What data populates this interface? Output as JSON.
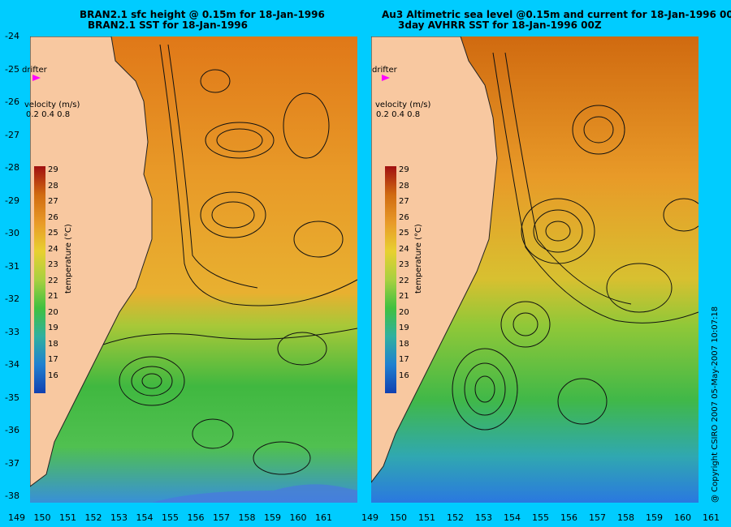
{
  "left_panel": {
    "title_line1": "BRAN2.1 sfc height @ 0.15m for 18-Jan-1996",
    "title_line2": "BRAN2.1 SST for 18-Jan-1996"
  },
  "right_panel": {
    "title_line1": "Au3 Altimetric sea level  @0.15m and current for 18-Jan-1996 00Z",
    "title_line2": "3day AVHRR SST for 18-Jan-1996 00Z"
  },
  "drifter_label": "drifter",
  "velocity_label": "velocity (m/s)",
  "velocity_scale": "0.2 0.4 0.8",
  "colorbar_title": "temperature (°C)",
  "colorbar_ticks": [
    "29",
    "28",
    "27",
    "26",
    "25",
    "24",
    "23",
    "22",
    "21",
    "20",
    "19",
    "18",
    "17",
    "16"
  ],
  "lat_ticks": [
    "-24",
    "-25",
    "-26",
    "-27",
    "-28",
    "-29",
    "-30",
    "-31",
    "-32",
    "-33",
    "-34",
    "-35",
    "-36",
    "-37",
    "-38"
  ],
  "lon_ticks": [
    "149",
    "150",
    "151",
    "152",
    "153",
    "154",
    "155",
    "156",
    "157",
    "158",
    "159",
    "160",
    "161"
  ],
  "copyright": "@ Copyright CSIRO 2007  05-May-2007 10:07:18",
  "colors": {
    "background": "#00ccff",
    "land": "#f8c8a0",
    "warm": "#e88a1c",
    "hot": "#d06a10",
    "mid": "#e8c030",
    "cool": "#50c040",
    "cold": "#2090d0",
    "drifter": "#ff00ff"
  }
}
